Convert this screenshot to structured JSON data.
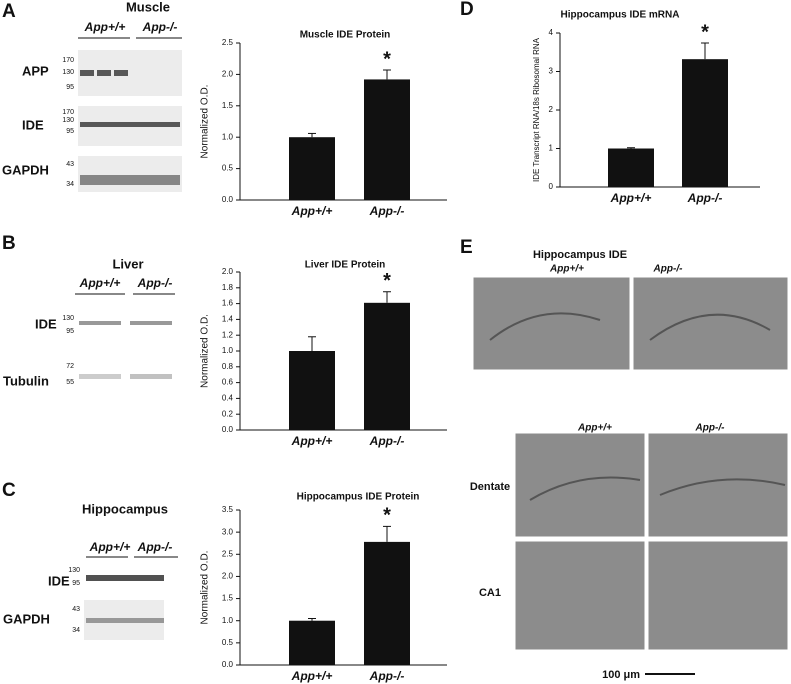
{
  "chart_data": [
    {
      "type": "bar",
      "title": "Muscle IDE Protein",
      "y_label": "Normalized O.D.",
      "categories": [
        "App+/+",
        "App-/-"
      ],
      "values": [
        1.0,
        1.92
      ],
      "errors": [
        0.06,
        0.15
      ],
      "color": "#111111",
      "annotation": "*",
      "ylim": [
        0,
        2.5
      ],
      "yticks": [
        {
          "value": 0,
          "label": "0.0"
        },
        0.5,
        {
          "value": 1,
          "label": "1.0"
        },
        1.5,
        {
          "value": 2,
          "label": "2.0"
        },
        2.5
      ]
    },
    {
      "type": "bar",
      "title": "Liver IDE Protein",
      "y_label": "Normalized O.D.",
      "categories": [
        "App+/+",
        "App-/-"
      ],
      "values": [
        1.0,
        1.61
      ],
      "errors": [
        0.18,
        0.14
      ],
      "color": "#111111",
      "annotation": "*",
      "ylim": [
        0,
        2
      ],
      "yticks": [
        {
          "value": 0,
          "label": "0.0"
        },
        0.2,
        0.4,
        0.6,
        0.8,
        {
          "value": 1,
          "label": "1.0"
        },
        1.2,
        1.4,
        1.6,
        1.8,
        {
          "value": 2,
          "label": "2.0"
        }
      ]
    },
    {
      "type": "bar",
      "title": "Hippocampus IDE Protein",
      "y_label": "Normalized O.D.",
      "categories": [
        "App+/+",
        "App-/-"
      ],
      "values": [
        1.0,
        2.78
      ],
      "errors": [
        0.05,
        0.35
      ],
      "color": "#111111",
      "annotation": "*",
      "ylim": [
        0,
        3.5
      ],
      "yticks": [
        {
          "value": 0,
          "label": "0.0"
        },
        0.5,
        {
          "value": 1,
          "label": "1.0"
        },
        1.5,
        {
          "value": 2,
          "label": "2.0"
        },
        2.5,
        {
          "value": 3,
          "label": "3.0"
        },
        3.5
      ]
    },
    {
      "type": "bar",
      "title": "Hippocampus IDE mRNA",
      "y_label": "IDE Transcript RNA/18s Ribosomal RNA",
      "categories": [
        "App+/+",
        "App-/-"
      ],
      "values": [
        1.0,
        3.32
      ],
      "errors": [
        0.02,
        0.42
      ],
      "color": "#111111",
      "annotation": "*",
      "ylim": [
        0,
        4
      ],
      "yticks": [
        0,
        1,
        2,
        3,
        4
      ]
    }
  ],
  "panels": {
    "A": {
      "letter": "A",
      "title": "Muscle",
      "genotypes": [
        "App+/+",
        "App-/-"
      ],
      "rows": [
        "APP",
        "IDE",
        "GAPDH"
      ],
      "markers": [
        "170",
        "130",
        "95",
        "170",
        "130",
        "95",
        "43",
        "34"
      ]
    },
    "B": {
      "letter": "B",
      "title": "Liver",
      "genotypes": [
        "App+/+",
        "App-/-"
      ],
      "rows": [
        "IDE",
        "Tubulin"
      ],
      "markers": [
        "130",
        "95",
        "72",
        "55"
      ]
    },
    "C": {
      "letter": "C",
      "title": "Hippocampus",
      "genotypes": [
        "App+/+",
        "App-/-"
      ],
      "rows": [
        "IDE",
        "GAPDH"
      ],
      "markers": [
        "130",
        "95",
        "43",
        "34"
      ]
    },
    "D": {
      "letter": "D"
    },
    "E": {
      "letter": "E",
      "title": "Hippocampus IDE",
      "genotypes": [
        "App+/+",
        "App-/-"
      ],
      "regions": [
        "Dentate",
        "CA1"
      ],
      "scale": "100 μm"
    }
  }
}
